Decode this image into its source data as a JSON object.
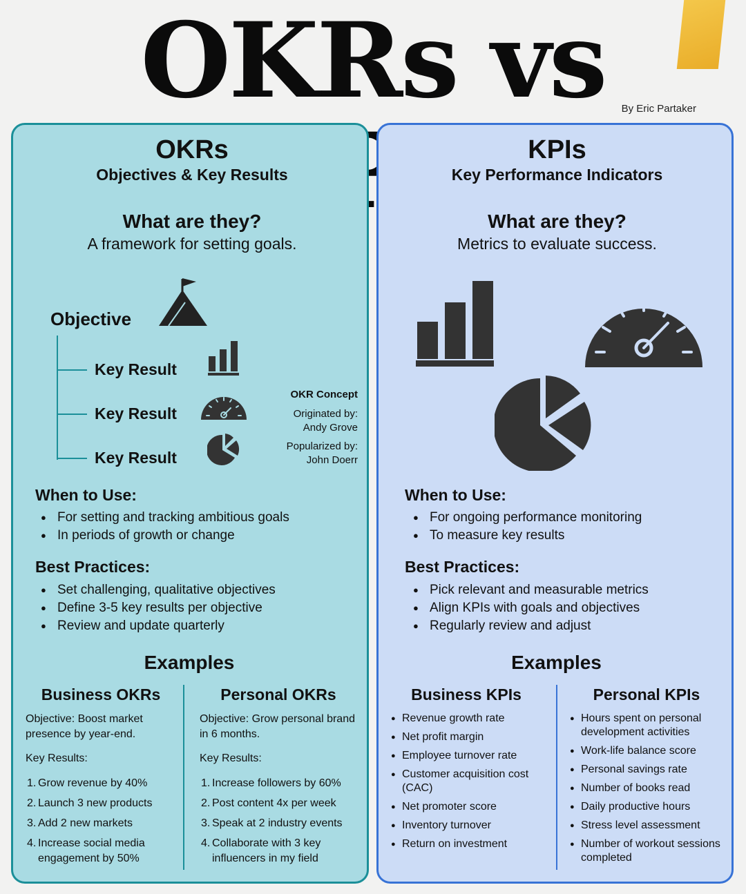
{
  "header": {
    "title": "OKRs vs KPIs",
    "byline": "By Eric Partaker"
  },
  "okr": {
    "heading": "OKRs",
    "subheading": "Objectives & Key Results",
    "question": "What are they?",
    "answer": "A framework for setting goals.",
    "diagram": {
      "objective": "Objective",
      "key_results": [
        "Key Result",
        "Key Result",
        "Key Result"
      ]
    },
    "concept": {
      "title": "OKR Concept",
      "originated_label": "Originated by:",
      "originated_name": "Andy Grove",
      "popularized_label": "Popularized by:",
      "popularized_name": "John Doerr"
    },
    "when_title": "When to Use:",
    "when_items": [
      "For setting and tracking ambitious goals",
      "In periods of growth or change"
    ],
    "best_title": "Best Practices:",
    "best_items": [
      "Set challenging, qualitative objectives",
      "Define 3-5 key results per objective",
      "Review and update quarterly"
    ],
    "examples_title": "Examples",
    "business": {
      "title": "Business OKRs",
      "objective": "Objective: Boost market presence by year-end.",
      "kr_label": "Key Results:",
      "items": [
        "Grow revenue by 40%",
        "Launch 3 new products",
        "Add 2 new markets",
        "Increase social media engagement by 50%"
      ]
    },
    "personal": {
      "title": "Personal OKRs",
      "objective": "Objective: Grow personal brand in 6 months.",
      "kr_label": "Key Results:",
      "items": [
        "Increase followers by 60%",
        "Post content 4x per week",
        "Speak at 2 industry events",
        "Collaborate with 3 key influencers in my field"
      ]
    }
  },
  "kpi": {
    "heading": "KPIs",
    "subheading": "Key Performance Indicators",
    "question": "What are they?",
    "answer": "Metrics to evaluate success.",
    "when_title": "When to Use:",
    "when_items": [
      "For ongoing performance monitoring",
      "To measure key results"
    ],
    "best_title": "Best Practices:",
    "best_items": [
      "Pick relevant and measurable metrics",
      "Align KPIs with goals and objectives",
      "Regularly review and adjust"
    ],
    "examples_title": "Examples",
    "business": {
      "title": "Business KPIs",
      "items": [
        "Revenue growth rate",
        "Net profit margin",
        "Employee turnover rate",
        "Customer acquisition cost (CAC)",
        "Net promoter score",
        "Inventory turnover",
        "Return on investment"
      ]
    },
    "personal": {
      "title": "Personal KPIs",
      "items": [
        "Hours spent on personal development activities",
        "Work-life balance score",
        "Personal savings rate",
        "Number of books read",
        "Daily productive hours",
        "Stress level assessment",
        "Number of workout sessions completed"
      ]
    }
  },
  "colors": {
    "okr_panel": "#a9dbe3",
    "okr_border": "#1b8f99",
    "kpi_panel": "#ccdcf6",
    "kpi_border": "#3873d6",
    "icon": "#333333"
  }
}
